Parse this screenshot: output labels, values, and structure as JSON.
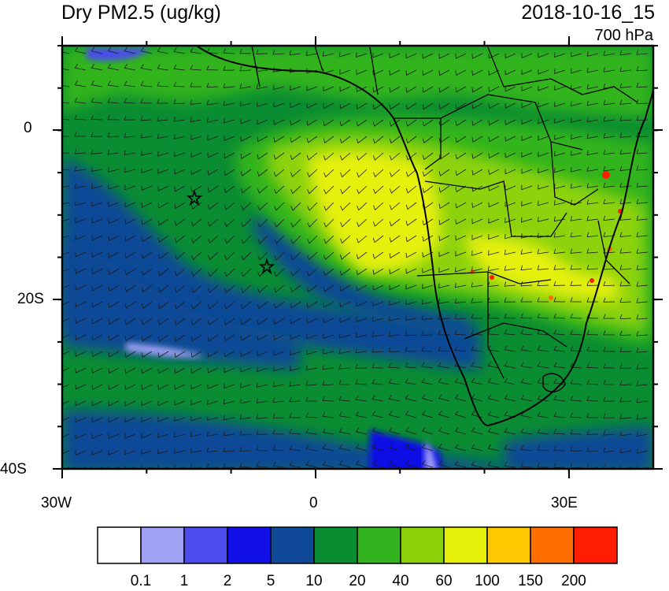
{
  "title": "Dry PM2.5 (ug/kg)",
  "datetime": "2018-10-16_15",
  "level": "700 hPa",
  "axes": {
    "y_labels": [
      "0",
      "20S",
      "40S"
    ],
    "x_labels": [
      "30W",
      "0",
      "30E"
    ]
  },
  "colorbar": {
    "colors": [
      "#ffffff",
      "#a0a0f5",
      "#4b4bf0",
      "#1010e6",
      "#0f4896",
      "#0a8c32",
      "#32b41e",
      "#8cd20a",
      "#e6f00a",
      "#ffc800",
      "#ff6e00",
      "#ff1e00"
    ],
    "labels": [
      "0.1",
      "1",
      "2",
      "5",
      "10",
      "20",
      "40",
      "60",
      "100",
      "150",
      "200"
    ]
  },
  "markers": {
    "type": "star",
    "count": 2
  }
}
